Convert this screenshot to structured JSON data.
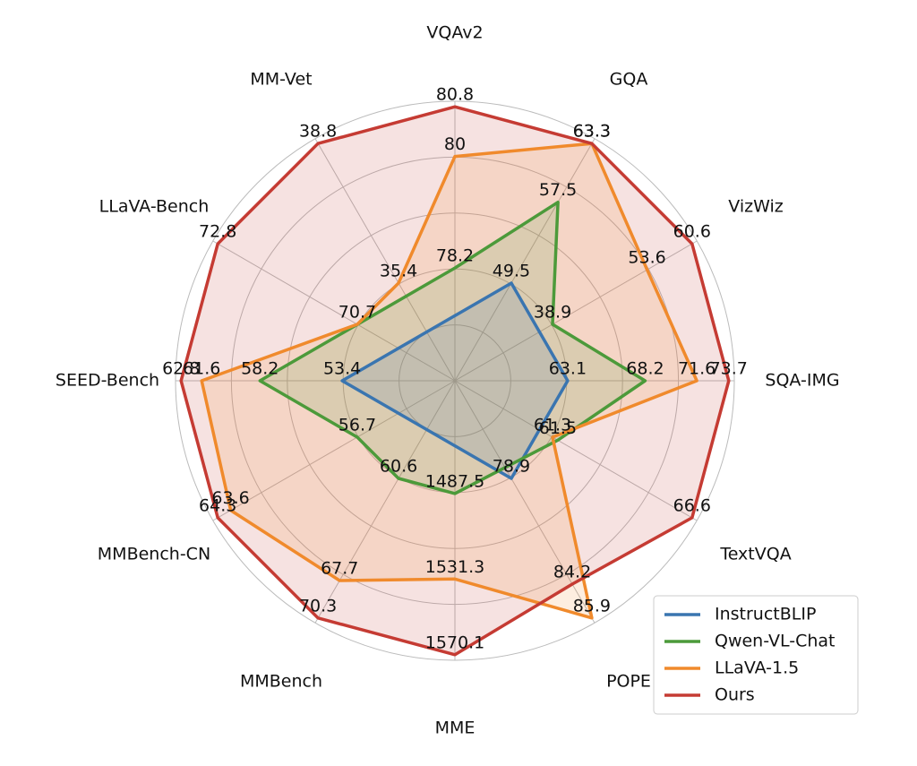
{
  "chart_data": {
    "type": "radar",
    "categories": [
      "VQAv2",
      "GQA",
      "VizWiz",
      "SQA-IMG",
      "TextVQA",
      "POPE",
      "MME",
      "MMBench",
      "MMBench-CN",
      "SEED-Bench",
      "LLaVA-Bench",
      "MM-Vet"
    ],
    "series": [
      {
        "name": "InstructBLIP",
        "color": "#3a75b0",
        "values": [
          null,
          49.5,
          null,
          63.1,
          null,
          78.9,
          null,
          null,
          null,
          53.4,
          null,
          null
        ]
      },
      {
        "name": "Qwen-VL-Chat",
        "color": "#4c9a3a",
        "values": [
          78.2,
          57.5,
          38.9,
          68.2,
          61.5,
          null,
          1487.5,
          60.6,
          56.7,
          58.2,
          null,
          null
        ]
      },
      {
        "name": "LLaVA-1.5",
        "color": "#f08a2c",
        "values": [
          80.0,
          63.3,
          53.6,
          71.6,
          61.3,
          85.9,
          1531.3,
          67.7,
          63.6,
          61.6,
          70.7,
          35.4
        ]
      },
      {
        "name": "Ours",
        "color": "#c53b33",
        "values": [
          80.8,
          63.3,
          60.6,
          73.7,
          66.6,
          84.2,
          1570.1,
          70.3,
          64.3,
          62.8,
          72.8,
          38.8
        ]
      }
    ],
    "grid": true,
    "legend": "lower right"
  }
}
